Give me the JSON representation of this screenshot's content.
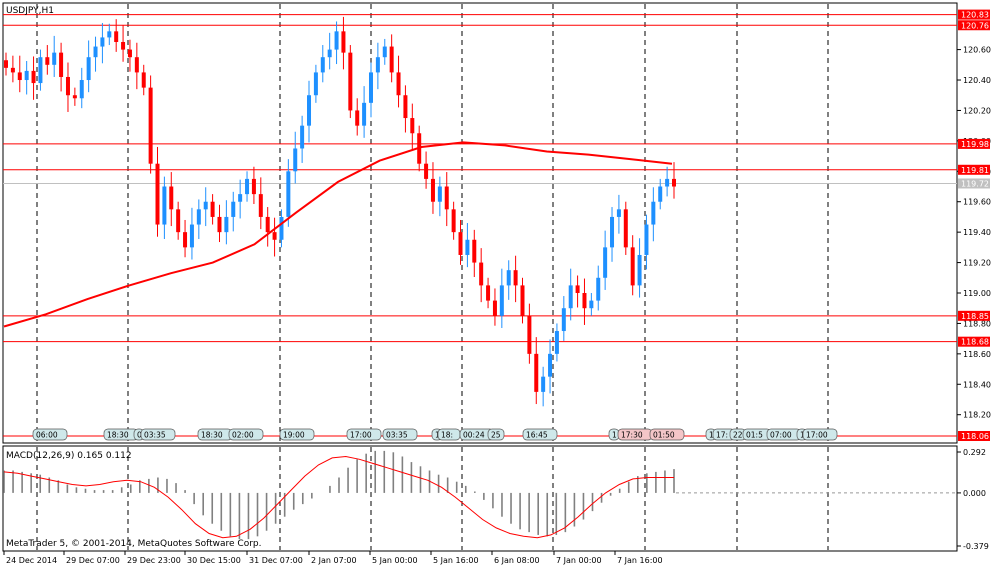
{
  "chart_data": [
    {
      "type": "candlestick",
      "title": "USDJPY,H1",
      "ylim": [
        118.06,
        120.88
      ],
      "y_ticks": [
        "120.60",
        "120.40",
        "120.20",
        "120.00",
        "119.80",
        "119.60",
        "119.40",
        "119.20",
        "119.00",
        "118.80",
        "118.60",
        "118.40",
        "118.20"
      ],
      "x_ticks": [
        "24 Dec 2014",
        "29 Dec 07:00",
        "29 Dec 23:00",
        "30 Dec 15:00",
        "31 Dec 07:00",
        "2 Jan 07:00",
        "5 Jan 00:00",
        "5 Jan 16:00",
        "6 Jan 08:00",
        "7 Jan 00:00",
        "7 Jan 16:00"
      ],
      "horizontal_lines": [
        {
          "label": "120.83",
          "value": 120.83,
          "color": "#ff0000"
        },
        {
          "label": "120.76",
          "value": 120.76,
          "color": "#ff0000"
        },
        {
          "label": "119.98",
          "value": 119.98,
          "color": "#ff0000"
        },
        {
          "label": "119.81",
          "value": 119.81,
          "color": "#ff0000"
        },
        {
          "label": "118.85",
          "value": 118.85,
          "color": "#ff0000"
        },
        {
          "label": "118.68",
          "value": 118.68,
          "color": "#ff0000"
        }
      ],
      "bid_line": {
        "label": "119.72",
        "value": 119.72,
        "color": "#c0c0c0"
      },
      "bottom_line": {
        "label": "118.06",
        "value": 118.06,
        "color": "#ff0000"
      },
      "close_path": [
        120.48,
        120.45,
        120.4,
        120.46,
        120.38,
        120.55,
        120.5,
        120.58,
        120.42,
        120.3,
        120.28,
        120.4,
        120.55,
        120.62,
        120.68,
        120.72,
        120.65,
        120.6,
        120.55,
        120.45,
        120.35,
        119.85,
        119.45,
        119.7,
        119.55,
        119.4,
        119.3,
        119.45,
        119.55,
        119.6,
        119.5,
        119.4,
        119.5,
        119.6,
        119.65,
        119.75,
        119.65,
        119.5,
        119.4,
        119.35,
        119.5,
        119.8,
        119.95,
        120.1,
        120.3,
        120.45,
        120.55,
        120.6,
        120.72,
        120.58,
        120.2,
        120.1,
        120.25,
        120.45,
        120.55,
        120.62,
        120.45,
        120.3,
        120.15,
        120.05,
        119.85,
        119.75,
        119.6,
        119.7,
        119.55,
        119.4,
        119.25,
        119.35,
        119.2,
        119.05,
        118.95,
        118.85,
        119.05,
        119.15,
        119.05,
        118.85,
        118.6,
        118.35,
        118.45,
        118.6,
        118.75,
        118.9,
        119.05,
        119.0,
        118.9,
        118.95,
        119.1,
        119.3,
        119.5,
        119.55,
        119.3,
        119.05,
        119.25,
        119.45,
        119.6,
        119.7,
        119.75,
        119.7
      ],
      "moving_average": {
        "values": [
          118.78,
          118.86,
          118.96,
          119.05,
          119.13,
          119.2,
          119.32,
          119.53,
          119.73,
          119.87,
          119.96,
          119.99,
          119.97,
          119.93,
          119.91,
          119.88,
          119.85
        ],
        "color": "#ff0000"
      },
      "time_labels": [
        "06:00",
        "18:30",
        "0",
        "03:35",
        "18:30",
        "02:00",
        "19:00",
        "17:00",
        "03:35",
        "1",
        "18:",
        "00:24",
        "25",
        "16:45",
        "1",
        "17:30",
        "01:50",
        "1",
        "17:",
        "22",
        "01:5",
        "07:00",
        "1",
        "17:00"
      ]
    },
    {
      "type": "bar",
      "title": "MACD(12,26,9) 0.165 0.112",
      "ylim": [
        -0.379,
        0.292
      ],
      "y_ticks": [
        "0.292",
        "0.000",
        "-0.379"
      ],
      "histogram": [
        0.16,
        0.16,
        0.15,
        0.14,
        0.13,
        0.11,
        0.09,
        0.06,
        0.04,
        0.03,
        0.02,
        0.02,
        0.02,
        0.04,
        0.06,
        0.09,
        0.1,
        0.11,
        0.1,
        0.07,
        0.02,
        -0.08,
        -0.16,
        -0.22,
        -0.27,
        -0.31,
        -0.33,
        -0.33,
        -0.31,
        -0.27,
        -0.22,
        -0.17,
        -0.12,
        -0.08,
        -0.04,
        0.0,
        0.05,
        0.11,
        0.18,
        0.24,
        0.28,
        0.3,
        0.3,
        0.29,
        0.26,
        0.22,
        0.19,
        0.16,
        0.13,
        0.11,
        0.08,
        0.05,
        0.01,
        -0.05,
        -0.11,
        -0.17,
        -0.22,
        -0.26,
        -0.28,
        -0.3,
        -0.31,
        -0.3,
        -0.28,
        -0.24,
        -0.19,
        -0.13,
        -0.07,
        -0.02,
        0.03,
        0.08,
        0.12,
        0.14,
        0.15,
        0.16,
        0.17
      ],
      "signal": [
        0.15,
        0.14,
        0.12,
        0.1,
        0.08,
        0.06,
        0.05,
        0.06,
        0.08,
        0.09,
        0.08,
        0.04,
        -0.03,
        -0.12,
        -0.22,
        -0.29,
        -0.32,
        -0.31,
        -0.26,
        -0.18,
        -0.08,
        0.02,
        0.12,
        0.2,
        0.25,
        0.26,
        0.24,
        0.21,
        0.18,
        0.15,
        0.12,
        0.09,
        0.04,
        -0.03,
        -0.11,
        -0.19,
        -0.25,
        -0.29,
        -0.31,
        -0.32,
        -0.3,
        -0.25,
        -0.17,
        -0.08,
        0.0,
        0.06,
        0.1,
        0.11,
        0.11,
        0.11
      ],
      "histogram_color": "#808080",
      "signal_color": "#ff0000"
    }
  ],
  "footer": "MetaTrader 5, © 2001-2014, MetaQuotes Software Corp.",
  "colors": {
    "bull": "#1e90ff",
    "bear": "#ff0000",
    "grid": "#000000",
    "axis_label_bg": "#ff0000"
  }
}
